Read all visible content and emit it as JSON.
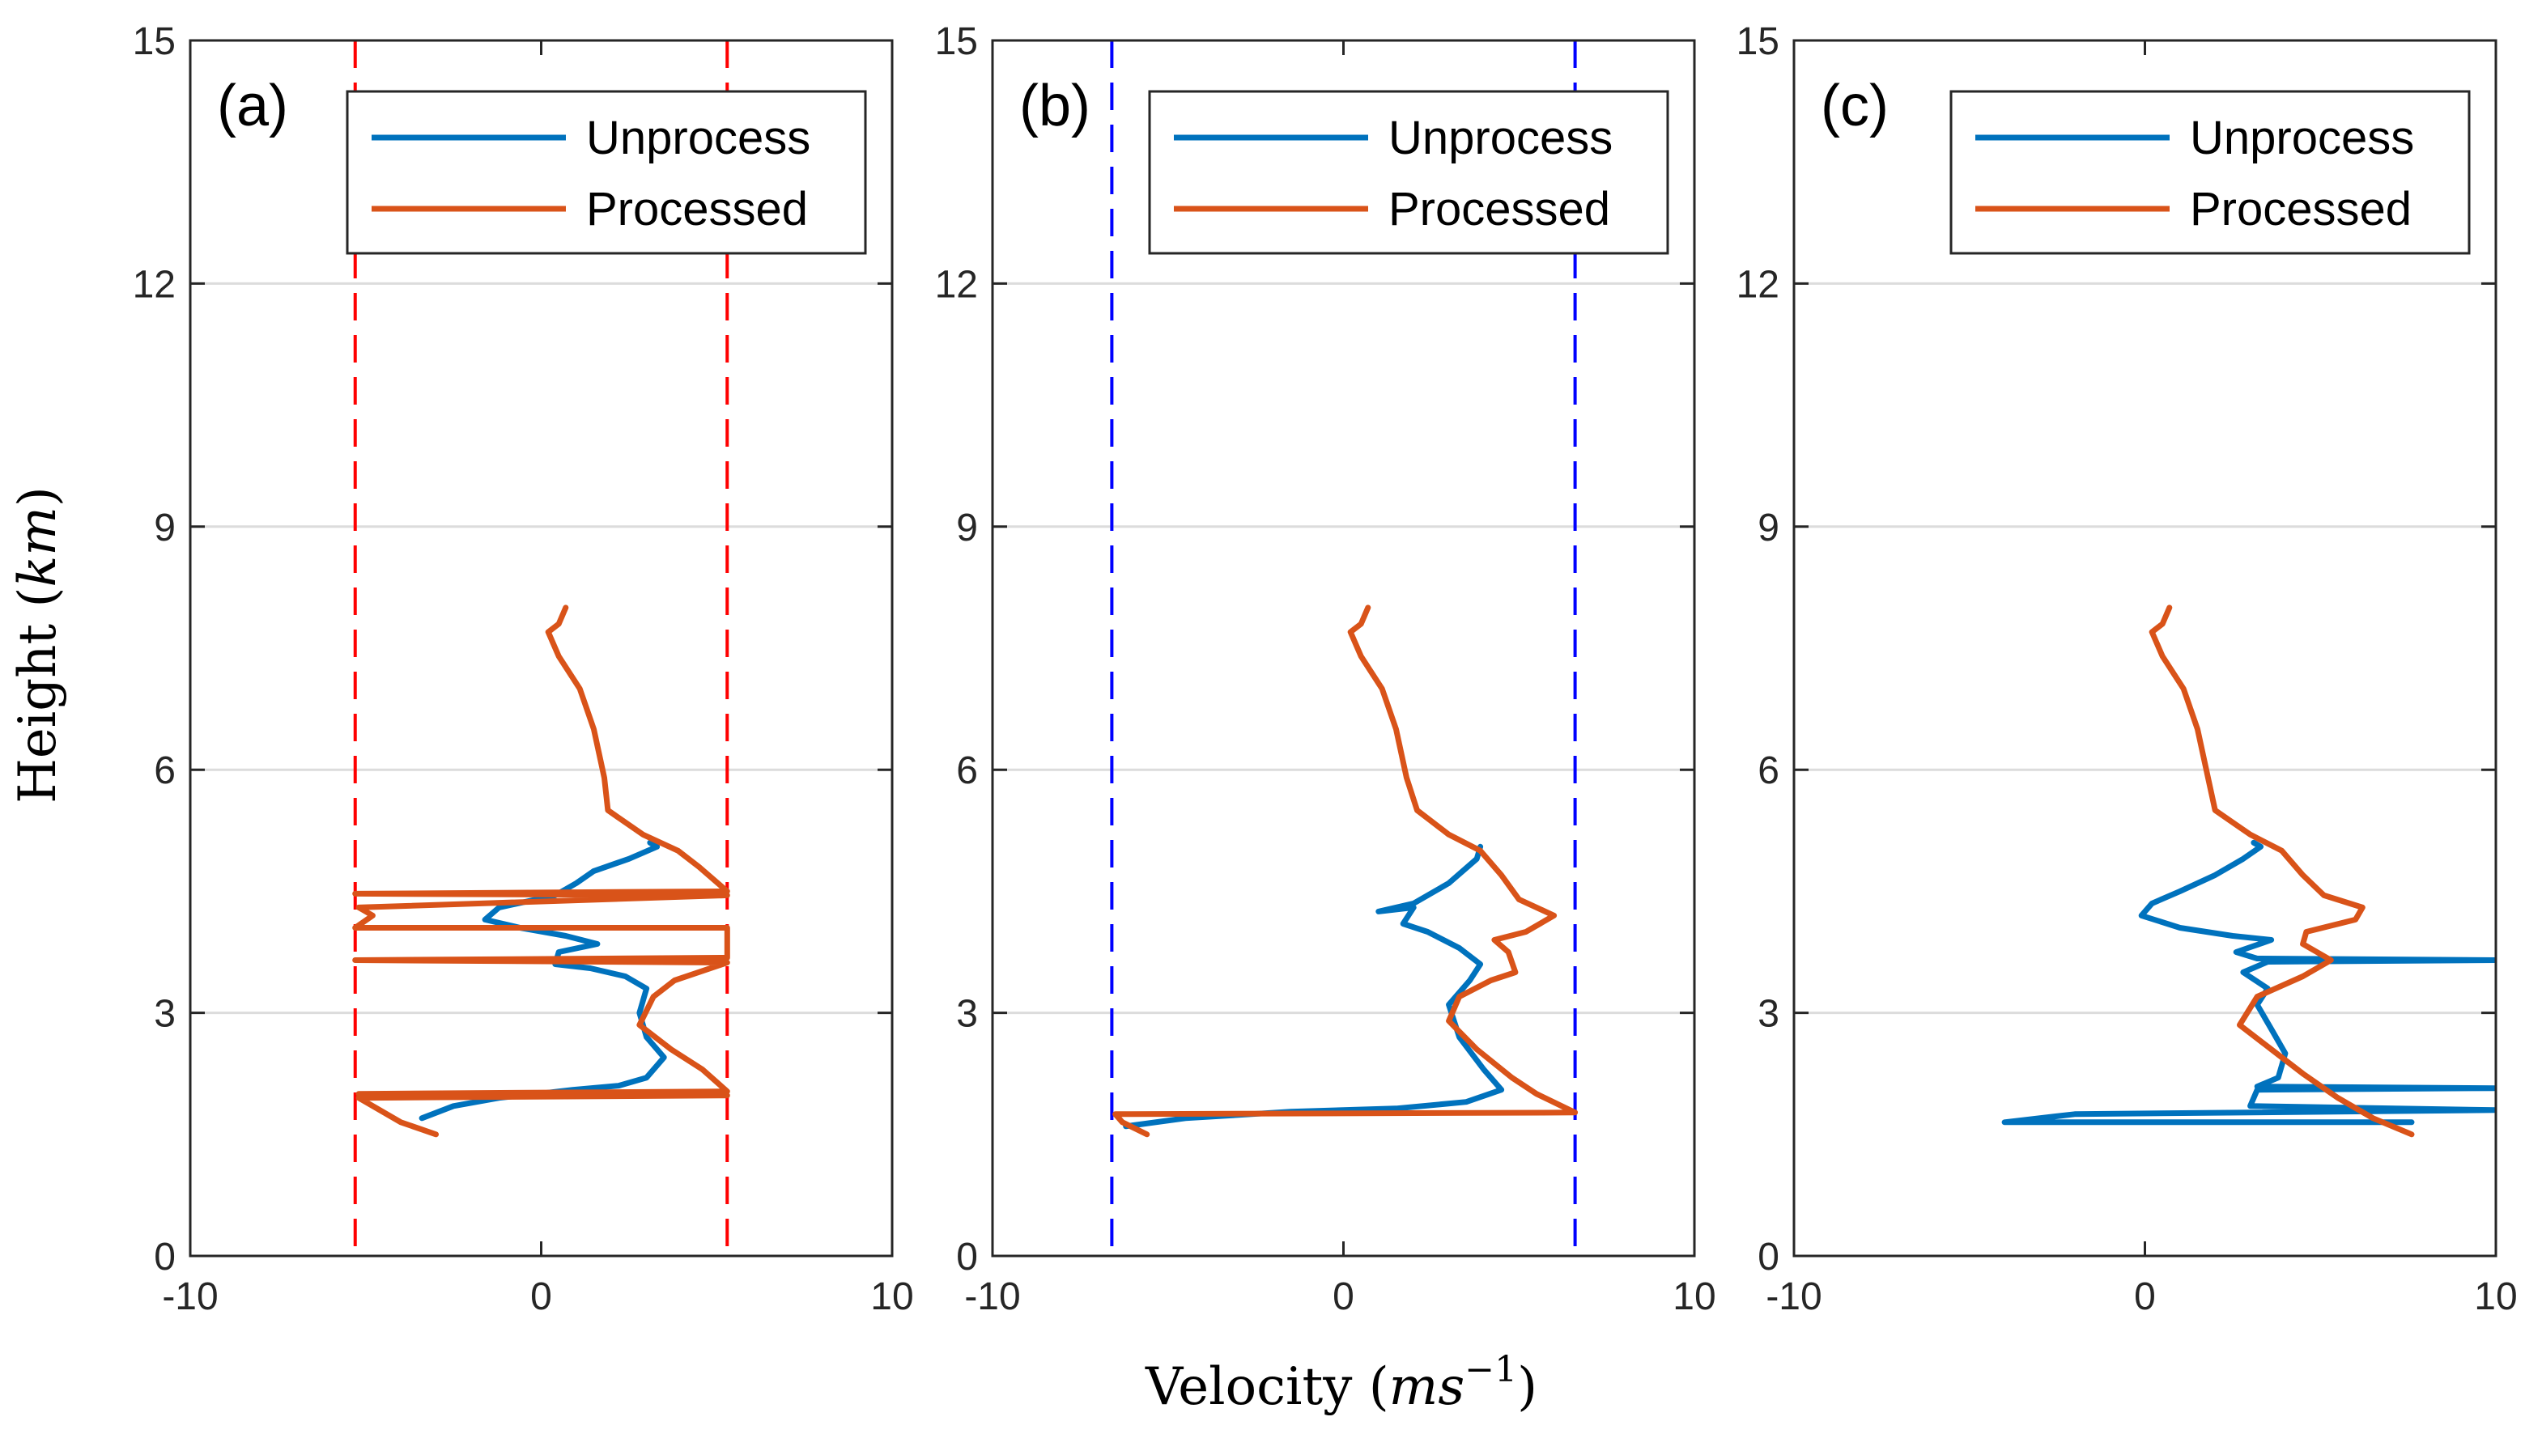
{
  "chart_data": [
    {
      "type": "line",
      "panel_label": "(a)",
      "xlim": [
        -10,
        10
      ],
      "ylim": [
        0,
        15
      ],
      "xticks": [
        -10,
        0,
        10
      ],
      "yticks": [
        0,
        3,
        6,
        9,
        12,
        15
      ],
      "ygrid": true,
      "legend": {
        "position": "top-right",
        "entries": [
          "Unprocess",
          "Processed"
        ]
      },
      "limit_lines": {
        "color": "#ff0000",
        "style": "dashed",
        "x": [
          -5.3,
          5.3
        ]
      },
      "series": [
        {
          "name": "Unprocess",
          "color": "#0072bd",
          "points": [
            [
              -3.4,
              1.7
            ],
            [
              -2.5,
              1.85
            ],
            [
              -1.2,
              1.95
            ],
            [
              -0.1,
              2.0
            ],
            [
              0.9,
              2.05
            ],
            [
              2.2,
              2.1
            ],
            [
              3.0,
              2.2
            ],
            [
              3.5,
              2.45
            ],
            [
              3.0,
              2.7
            ],
            [
              2.8,
              3.0
            ],
            [
              3.0,
              3.3
            ],
            [
              2.4,
              3.45
            ],
            [
              1.4,
              3.55
            ],
            [
              0.4,
              3.6
            ],
            [
              0.5,
              3.75
            ],
            [
              1.6,
              3.85
            ],
            [
              0.7,
              3.95
            ],
            [
              -0.6,
              4.05
            ],
            [
              -1.6,
              4.15
            ],
            [
              -1.2,
              4.3
            ],
            [
              0.4,
              4.45
            ],
            [
              1.0,
              4.6
            ],
            [
              1.5,
              4.75
            ],
            [
              2.5,
              4.9
            ],
            [
              3.3,
              5.05
            ],
            [
              3.1,
              5.1
            ]
          ]
        },
        {
          "name": "Processed",
          "color": "#d95319",
          "points": [
            [
              -3.0,
              1.5
            ],
            [
              -4.0,
              1.65
            ],
            [
              -5.2,
              1.95
            ],
            [
              5.3,
              1.98
            ],
            [
              -5.2,
              2.0
            ],
            [
              5.3,
              2.03
            ],
            [
              4.6,
              2.3
            ],
            [
              3.7,
              2.55
            ],
            [
              2.8,
              2.85
            ],
            [
              3.2,
              3.2
            ],
            [
              3.8,
              3.4
            ],
            [
              5.3,
              3.62
            ],
            [
              -5.3,
              3.65
            ],
            [
              5.3,
              3.68
            ],
            [
              5.3,
              4.05
            ],
            [
              -5.3,
              4.05
            ],
            [
              -4.8,
              4.2
            ],
            [
              -5.2,
              4.3
            ],
            [
              5.3,
              4.45
            ],
            [
              -5.3,
              4.47
            ],
            [
              5.3,
              4.5
            ],
            [
              4.5,
              4.8
            ],
            [
              3.9,
              5.0
            ],
            [
              2.9,
              5.2
            ],
            [
              1.9,
              5.5
            ],
            [
              1.8,
              5.9
            ],
            [
              1.5,
              6.5
            ],
            [
              1.1,
              7.0
            ],
            [
              0.5,
              7.4
            ],
            [
              0.2,
              7.7
            ],
            [
              0.5,
              7.8
            ],
            [
              0.7,
              8.0
            ]
          ]
        }
      ]
    },
    {
      "type": "line",
      "panel_label": "(b)",
      "xlim": [
        -10,
        10
      ],
      "ylim": [
        0,
        15
      ],
      "xticks": [
        -10,
        0,
        10
      ],
      "yticks": [
        0,
        3,
        6,
        9,
        12,
        15
      ],
      "ygrid": true,
      "legend": {
        "position": "top-right",
        "entries": [
          "Unprocess",
          "Processed"
        ]
      },
      "limit_lines": {
        "color": "#0000ff",
        "style": "dashed",
        "x": [
          -6.6,
          6.6
        ]
      },
      "series": [
        {
          "name": "Unprocess",
          "color": "#0072bd",
          "points": [
            [
              -6.2,
              1.6
            ],
            [
              -4.5,
              1.7
            ],
            [
              -1.5,
              1.78
            ],
            [
              1.5,
              1.82
            ],
            [
              3.5,
              1.9
            ],
            [
              4.5,
              2.05
            ],
            [
              4.0,
              2.3
            ],
            [
              3.3,
              2.7
            ],
            [
              3.0,
              3.1
            ],
            [
              3.6,
              3.4
            ],
            [
              3.9,
              3.6
            ],
            [
              3.3,
              3.8
            ],
            [
              2.4,
              4.0
            ],
            [
              1.7,
              4.1
            ],
            [
              2.0,
              4.3
            ],
            [
              1.0,
              4.25
            ],
            [
              2.0,
              4.35
            ],
            [
              3.0,
              4.6
            ],
            [
              3.8,
              4.9
            ],
            [
              3.9,
              5.05
            ]
          ]
        },
        {
          "name": "Processed",
          "color": "#d95319",
          "points": [
            [
              -5.6,
              1.5
            ],
            [
              -6.3,
              1.65
            ],
            [
              -6.5,
              1.75
            ],
            [
              6.6,
              1.77
            ],
            [
              5.5,
              2.0
            ],
            [
              4.8,
              2.2
            ],
            [
              3.8,
              2.55
            ],
            [
              3.0,
              2.9
            ],
            [
              3.3,
              3.2
            ],
            [
              4.2,
              3.4
            ],
            [
              4.9,
              3.5
            ],
            [
              4.7,
              3.75
            ],
            [
              4.3,
              3.9
            ],
            [
              5.2,
              4.0
            ],
            [
              6.0,
              4.2
            ],
            [
              5.0,
              4.4
            ],
            [
              4.5,
              4.7
            ],
            [
              3.9,
              5.0
            ],
            [
              3.0,
              5.2
            ],
            [
              2.1,
              5.5
            ],
            [
              1.8,
              5.9
            ],
            [
              1.5,
              6.5
            ],
            [
              1.1,
              7.0
            ],
            [
              0.5,
              7.4
            ],
            [
              0.2,
              7.7
            ],
            [
              0.5,
              7.8
            ],
            [
              0.7,
              8.0
            ]
          ]
        }
      ]
    },
    {
      "type": "line",
      "panel_label": "(c)",
      "xlim": [
        -10,
        10
      ],
      "ylim": [
        0,
        15
      ],
      "xticks": [
        -10,
        0,
        10
      ],
      "yticks": [
        0,
        3,
        6,
        9,
        12,
        15
      ],
      "ygrid": true,
      "legend": {
        "position": "top-right",
        "entries": [
          "Unprocess",
          "Processed"
        ]
      },
      "series": [
        {
          "name": "Unprocess",
          "color": "#0072bd",
          "points": [
            [
              7.6,
              1.65
            ],
            [
              -4.0,
              1.65
            ],
            [
              -2.0,
              1.75
            ],
            [
              10.0,
              1.8
            ],
            [
              3.0,
              1.85
            ],
            [
              3.2,
              2.05
            ],
            [
              10.0,
              2.07
            ],
            [
              3.2,
              2.09
            ],
            [
              3.8,
              2.2
            ],
            [
              4.0,
              2.5
            ],
            [
              3.6,
              2.8
            ],
            [
              3.2,
              3.1
            ],
            [
              3.5,
              3.3
            ],
            [
              2.8,
              3.5
            ],
            [
              3.5,
              3.63
            ],
            [
              10.0,
              3.65
            ],
            [
              3.2,
              3.67
            ],
            [
              2.6,
              3.75
            ],
            [
              3.6,
              3.9
            ],
            [
              2.5,
              3.95
            ],
            [
              1.0,
              4.05
            ],
            [
              -0.1,
              4.2
            ],
            [
              0.2,
              4.35
            ],
            [
              1.0,
              4.5
            ],
            [
              2.0,
              4.7
            ],
            [
              2.8,
              4.9
            ],
            [
              3.3,
              5.05
            ],
            [
              3.1,
              5.1
            ]
          ]
        },
        {
          "name": "Processed",
          "color": "#d95319",
          "points": [
            [
              7.6,
              1.5
            ],
            [
              6.5,
              1.7
            ],
            [
              5.5,
              1.95
            ],
            [
              4.5,
              2.25
            ],
            [
              3.6,
              2.55
            ],
            [
              2.7,
              2.85
            ],
            [
              3.2,
              3.2
            ],
            [
              4.5,
              3.45
            ],
            [
              5.3,
              3.65
            ],
            [
              4.5,
              3.85
            ],
            [
              4.6,
              4.0
            ],
            [
              6.0,
              4.15
            ],
            [
              6.2,
              4.3
            ],
            [
              5.1,
              4.45
            ],
            [
              4.5,
              4.7
            ],
            [
              3.9,
              5.0
            ],
            [
              3.0,
              5.2
            ],
            [
              2.0,
              5.5
            ],
            [
              1.8,
              5.9
            ],
            [
              1.5,
              6.5
            ],
            [
              1.1,
              7.0
            ],
            [
              0.5,
              7.4
            ],
            [
              0.2,
              7.7
            ],
            [
              0.5,
              7.8
            ],
            [
              0.7,
              8.0
            ]
          ]
        }
      ]
    }
  ],
  "figure": {
    "xlabel_text": "Velocity",
    "xlabel_unit": "ms",
    "xlabel_exponent": "−1",
    "ylabel_text": "Height",
    "ylabel_unit": "km"
  }
}
